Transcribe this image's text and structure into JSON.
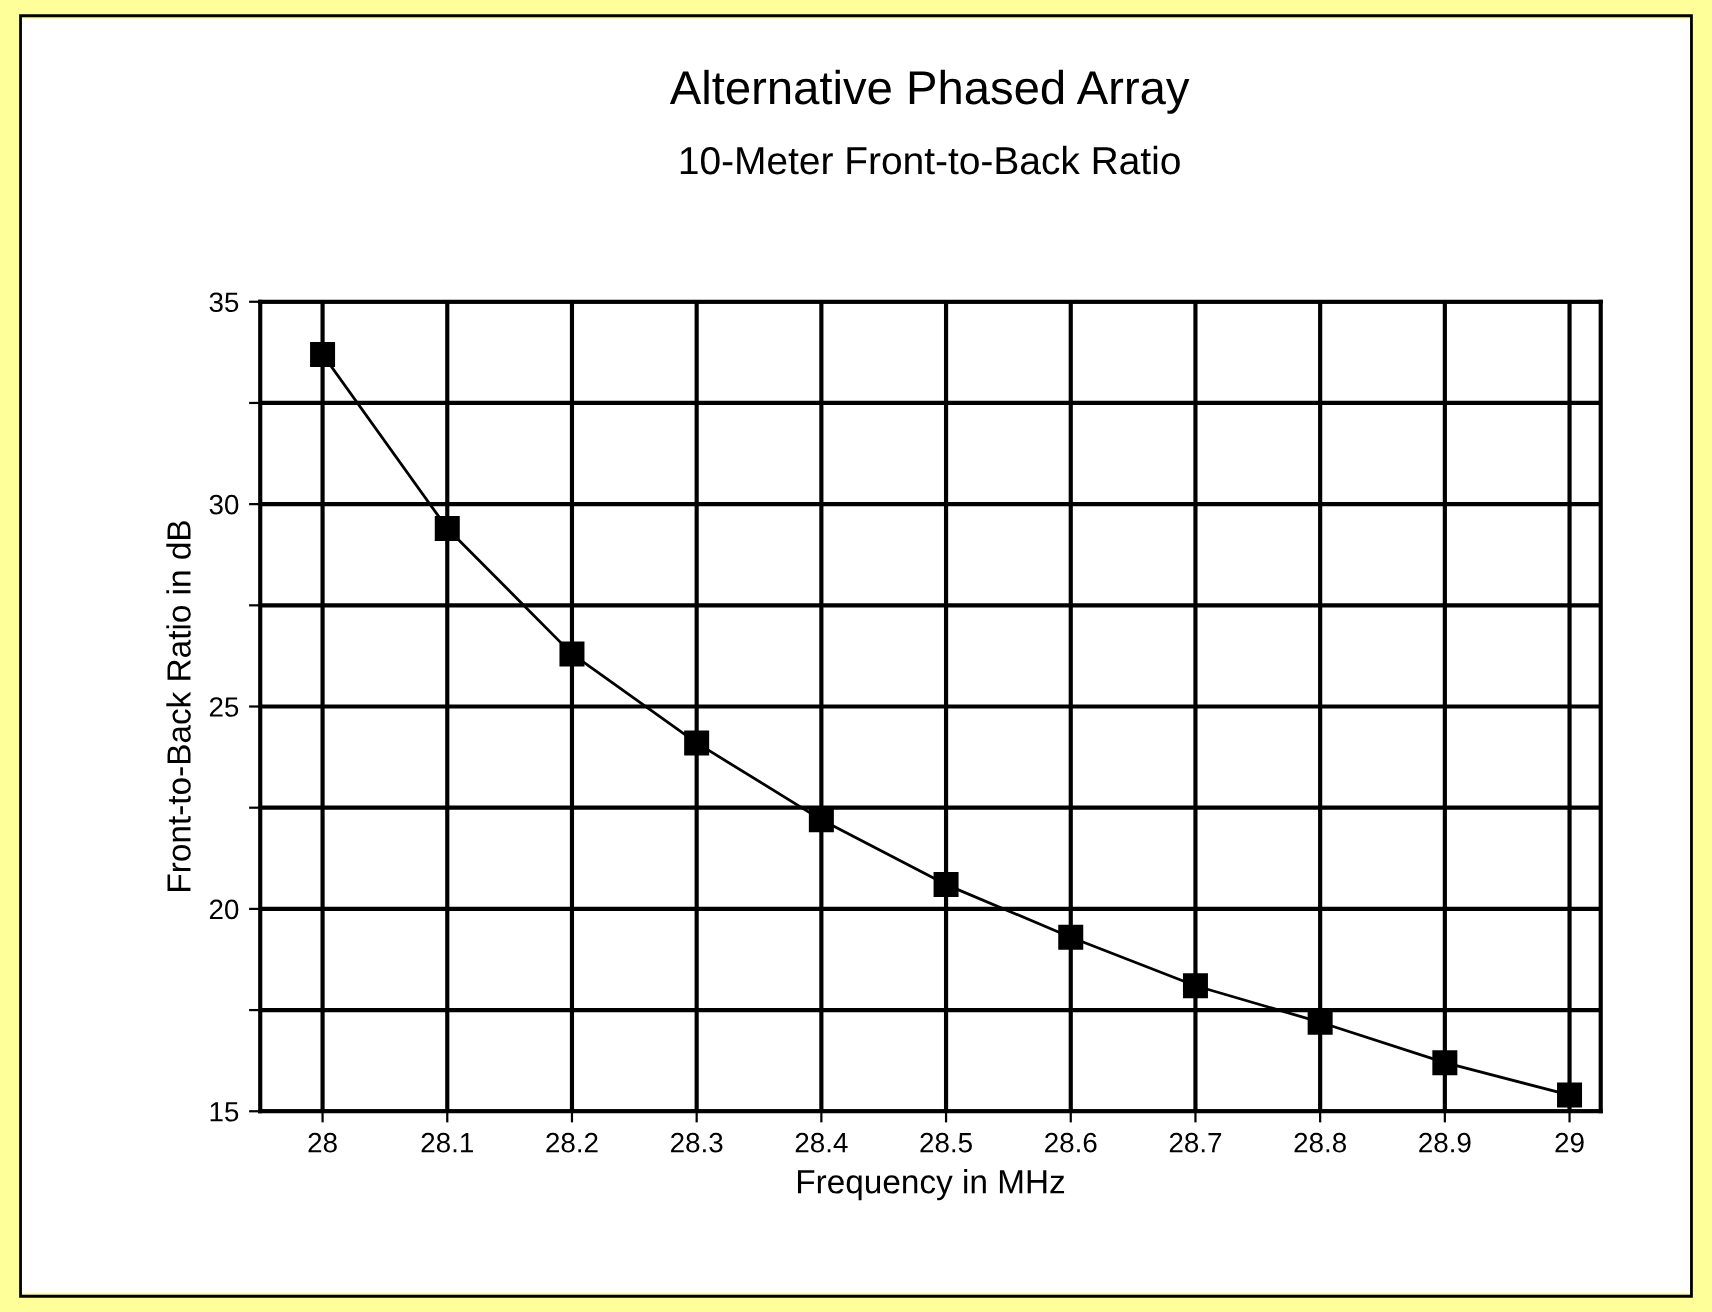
{
  "chart_data": {
    "type": "line",
    "title": "Alternative Phased Array",
    "subtitle": "10-Meter Front-to-Back Ratio",
    "xlabel": "Frequency in MHz",
    "ylabel": "Front-to-Back Ratio in dB",
    "x": [
      28,
      28.1,
      28.2,
      28.3,
      28.4,
      28.5,
      28.6,
      28.7,
      28.8,
      28.9,
      29
    ],
    "series": [
      {
        "color": "#000000",
        "values": [
          33.7,
          29.4,
          26.3,
          24.1,
          22.2,
          20.6,
          19.3,
          18.1,
          17.2,
          16.2,
          15.4
        ]
      }
    ],
    "xlim": [
      27.95,
      29.025
    ],
    "xticks": [
      28,
      28.1,
      28.2,
      28.3,
      28.4,
      28.5,
      28.6,
      28.7,
      28.8,
      28.9,
      29
    ],
    "ylim": [
      15,
      35
    ],
    "yticks": [
      15,
      {
        "value": 17.5,
        "label": null
      },
      20,
      {
        "value": 22.5,
        "label": null
      },
      25,
      {
        "value": 27.5,
        "label": null
      },
      30,
      {
        "value": 32.5,
        "label": null
      },
      35
    ],
    "grid": true,
    "marker": "square",
    "line_style": "solid"
  }
}
